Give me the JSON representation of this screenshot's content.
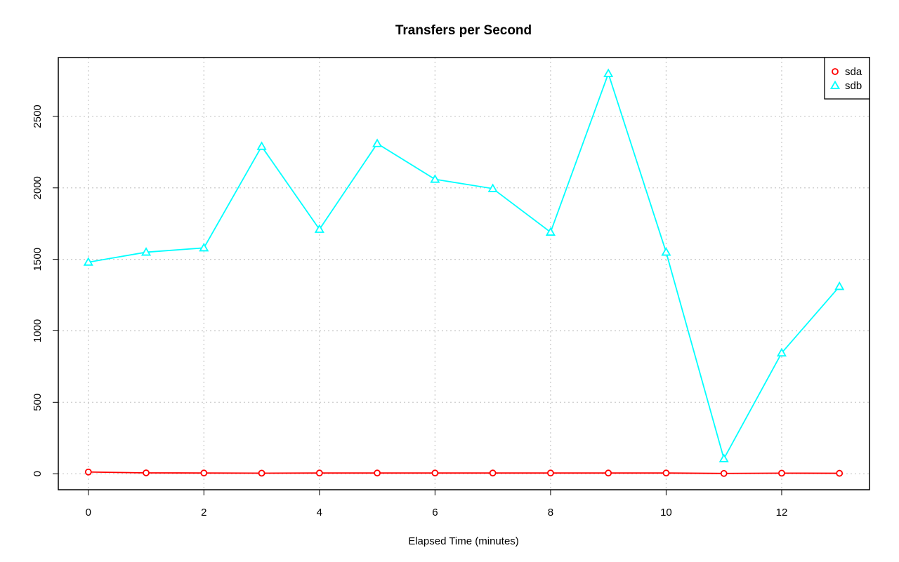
{
  "chart_data": {
    "type": "line",
    "title": "Transfers per Second",
    "xlabel": "Elapsed Time (minutes)",
    "ylabel": "",
    "x": [
      0,
      1,
      2,
      3,
      4,
      5,
      6,
      7,
      8,
      9,
      10,
      11,
      12,
      13
    ],
    "xlim": [
      -0.52,
      13.52
    ],
    "ylim": [
      -112,
      2912
    ],
    "x_ticks": [
      0,
      2,
      4,
      6,
      8,
      10,
      12
    ],
    "y_ticks": [
      0,
      500,
      1000,
      1500,
      2000,
      2500
    ],
    "grid": true,
    "legend_position": "top-right",
    "series": [
      {
        "name": "sda",
        "color": "#ff0000",
        "marker": "circle",
        "values": [
          12,
          6,
          5,
          4,
          5,
          5,
          5,
          5,
          5,
          5,
          5,
          2,
          4,
          3
        ]
      },
      {
        "name": "sdb",
        "color": "#00ffff",
        "marker": "triangle",
        "values": [
          1480,
          1550,
          1580,
          2290,
          1710,
          2310,
          2060,
          1995,
          1690,
          2800,
          1550,
          105,
          845,
          1310
        ]
      }
    ]
  }
}
